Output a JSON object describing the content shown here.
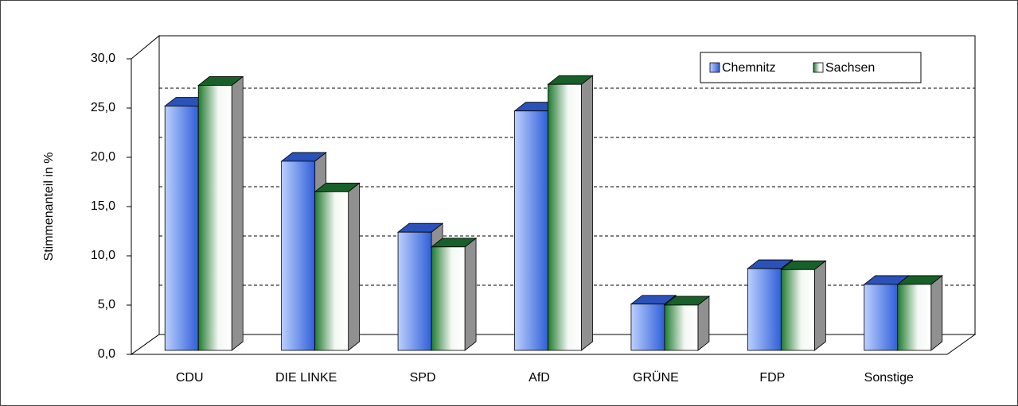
{
  "chart_data": {
    "type": "bar",
    "y_label": "Stimmenanteil in %",
    "categories": [
      "CDU",
      "DIE LINKE",
      "SPD",
      "AfD",
      "GRÜNE",
      "FDP",
      "Sonstige"
    ],
    "series": [
      {
        "name": "Chemnitz",
        "color": "#3d6fe0",
        "values": [
          24.8,
          19.2,
          12.0,
          24.3,
          4.7,
          8.3,
          6.7
        ]
      },
      {
        "name": "Sachsen",
        "color": "#1f7a2e",
        "values": [
          26.9,
          16.1,
          10.5,
          27.0,
          4.6,
          8.2,
          6.7
        ]
      }
    ],
    "ylim": [
      0,
      30
    ],
    "yticks": [
      {
        "value": 0,
        "label": "0,0"
      },
      {
        "value": 5,
        "label": "5,0"
      },
      {
        "value": 10,
        "label": "10,0"
      },
      {
        "value": 15,
        "label": "15,0"
      },
      {
        "value": 20,
        "label": "20,0"
      },
      {
        "value": 25,
        "label": "25,0"
      },
      {
        "value": 30,
        "label": "30,0"
      }
    ],
    "grid": true,
    "legend": "top-right"
  }
}
